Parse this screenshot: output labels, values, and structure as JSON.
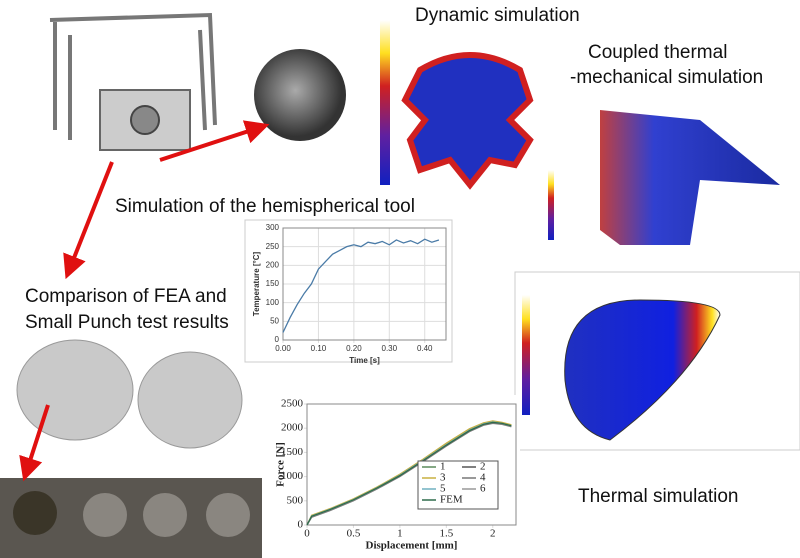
{
  "labels": {
    "dynamic": "Dynamic simulation",
    "coupled_1": "Coupled thermal",
    "coupled_2": "-mechanical simulation",
    "tool": "Simulation of the hemispherical tool",
    "comparison_1": "Comparison of FEA and",
    "comparison_2": "Small Punch test results",
    "thermal": "Thermal simulation"
  },
  "chart_data": [
    {
      "type": "line",
      "xlabel": "Time [s]",
      "ylabel": "Temperature [°C]",
      "x": [
        0,
        0.02,
        0.04,
        0.06,
        0.08,
        0.1,
        0.12,
        0.14,
        0.16,
        0.18,
        0.2,
        0.22,
        0.24,
        0.26,
        0.28,
        0.3,
        0.32,
        0.34,
        0.36,
        0.38,
        0.4,
        0.42,
        0.44
      ],
      "series": [
        {
          "color": "#4a7ba7",
          "values": [
            20,
            60,
            95,
            125,
            150,
            190,
            210,
            230,
            240,
            250,
            255,
            250,
            262,
            258,
            264,
            255,
            268,
            260,
            266,
            258,
            270,
            262,
            268
          ]
        }
      ],
      "xlim": [
        0,
        0.46
      ],
      "ylim": [
        0,
        300
      ],
      "xticks": [
        {
          "value": 0,
          "label": "0.00"
        },
        {
          "value": 0.1,
          "label": "0.10"
        },
        {
          "value": 0.2,
          "label": "0.20"
        },
        {
          "value": 0.3,
          "label": "0.30"
        },
        {
          "value": 0.4,
          "label": "0.40"
        }
      ],
      "yticks": [
        0,
        50,
        100,
        150,
        200,
        250,
        300
      ],
      "grid": true
    },
    {
      "type": "line",
      "xlabel": "Displacement [mm]",
      "ylabel": "Force [N]",
      "x": [
        0,
        0.05,
        0.25,
        0.5,
        0.75,
        1,
        1.25,
        1.5,
        1.75,
        1.9,
        2.0,
        2.1,
        2.2
      ],
      "series": [
        {
          "name": "1",
          "color": "#5a8a5a",
          "values": [
            0,
            190,
            330,
            530,
            770,
            1040,
            1350,
            1680,
            1980,
            2100,
            2140,
            2110,
            2060
          ]
        },
        {
          "name": "2",
          "color": "#555555",
          "values": [
            0,
            170,
            310,
            510,
            750,
            1010,
            1320,
            1640,
            1940,
            2070,
            2110,
            2090,
            2040
          ]
        },
        {
          "name": "3",
          "color": "#c8b040",
          "values": [
            0,
            200,
            340,
            540,
            780,
            1050,
            1360,
            1690,
            1990,
            2110,
            2150,
            2120,
            2070
          ]
        },
        {
          "name": "4",
          "color": "#777777",
          "values": [
            0,
            160,
            300,
            500,
            740,
            1000,
            1310,
            1630,
            1930,
            2060,
            2100,
            2080,
            2030
          ]
        },
        {
          "name": "5",
          "color": "#6fb0c0",
          "values": [
            0,
            185,
            325,
            525,
            765,
            1030,
            1340,
            1660,
            1960,
            2090,
            2130,
            2100,
            2050
          ]
        },
        {
          "name": "6",
          "color": "#999999",
          "values": [
            0,
            175,
            315,
            515,
            755,
            1020,
            1330,
            1650,
            1950,
            2080,
            2120,
            2095,
            2045
          ]
        },
        {
          "name": "FEM",
          "color": "#2e6b4a",
          "values": [
            0,
            180,
            320,
            520,
            760,
            1020,
            1330,
            1650,
            1950,
            2080,
            2120,
            2100,
            2050
          ]
        }
      ],
      "xlim": [
        0,
        2.25
      ],
      "ylim": [
        0,
        2500
      ],
      "xticks": [
        0,
        0.5,
        1,
        1.5,
        2
      ],
      "yticks": [
        0,
        500,
        1000,
        1500,
        2000,
        2500
      ],
      "legend": "lower right"
    }
  ]
}
